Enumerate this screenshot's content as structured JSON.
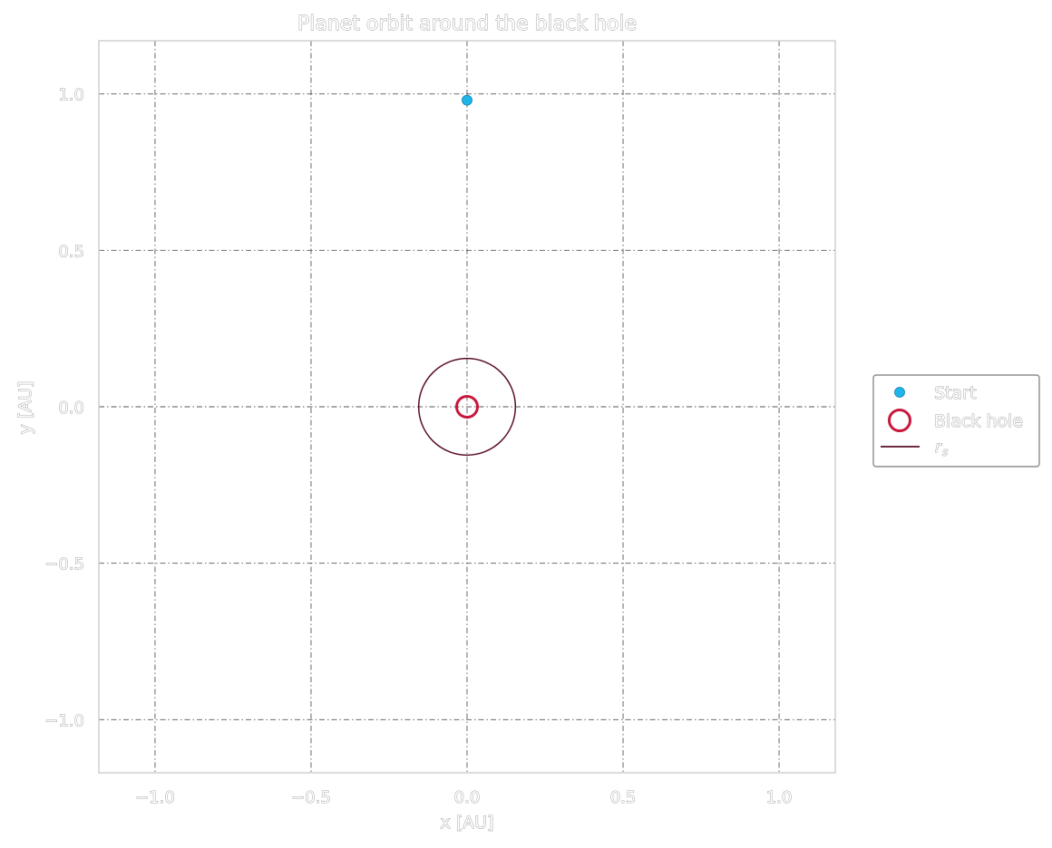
{
  "chart_data": {
    "type": "scatter",
    "title": "Planet orbit around the black hole",
    "xlabel": "x [AU]",
    "ylabel": "y [AU]",
    "xlim": [
      -1.18,
      1.18
    ],
    "ylim": [
      -1.17,
      1.17
    ],
    "xticks": [
      -1.0,
      -0.5,
      0.0,
      0.5,
      1.0
    ],
    "yticks": [
      -1.0,
      -0.5,
      0.0,
      0.5,
      1.0
    ],
    "xtick_labels": [
      "−1.0",
      "−0.5",
      "0.0",
      "0.5",
      "1.0"
    ],
    "ytick_labels": [
      "−1.0",
      "−0.5",
      "0.0",
      "0.5",
      "1.0"
    ],
    "grid": true,
    "aspect": "equal",
    "legend_position": "outside-right",
    "series": [
      {
        "name": "Start",
        "kind": "point",
        "x": 0.0,
        "y": 0.98,
        "color": "#1fb5ea"
      },
      {
        "name": "Black hole",
        "kind": "hollow-marker",
        "x": 0.0,
        "y": 0.0,
        "color": "#c8173c"
      },
      {
        "name": "r_s",
        "kind": "circle",
        "x": 0.0,
        "y": 0.0,
        "radius": 0.155,
        "color": "#5a0f24"
      }
    ],
    "legend": {
      "entries": [
        {
          "label": "Start",
          "symbol": "dot",
          "color": "#1fb5ea"
        },
        {
          "label": "Black hole",
          "symbol": "ring",
          "color": "#c8173c"
        },
        {
          "label": "r",
          "subscript": "s",
          "symbol": "line",
          "color": "#5a0f24"
        }
      ]
    }
  }
}
